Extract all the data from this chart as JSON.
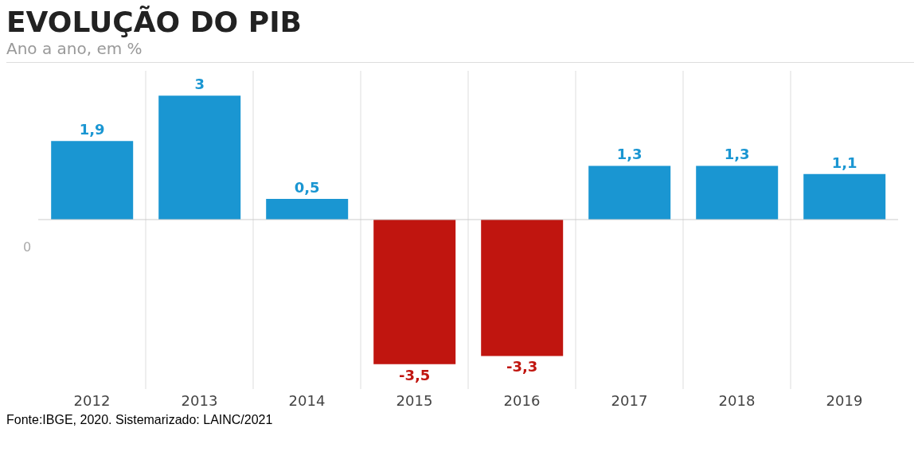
{
  "chart_data": {
    "type": "bar",
    "title": "EVOLUÇÃO DO PIB",
    "subtitle": "Ano a ano, em %",
    "categories": [
      "2012",
      "2013",
      "2014",
      "2015",
      "2016",
      "2017",
      "2018",
      "2019"
    ],
    "values": [
      1.9,
      3,
      0.5,
      -3.5,
      -3.3,
      1.3,
      1.3,
      1.1
    ],
    "value_labels": [
      "1,9",
      "3",
      "0,5",
      "-3,5",
      "-3,3",
      "1,3",
      "1,3",
      "1,1"
    ],
    "colors": [
      "#1a96d2",
      "#1a96d2",
      "#1a96d2",
      "#c0150f",
      "#c0150f",
      "#1a96d2",
      "#1a96d2",
      "#1a96d2"
    ],
    "ylim": [
      -4.1,
      3.6
    ],
    "grid": "x",
    "annotations": [
      "0",
      "Fonte:IBGE, 2020. Sistemarizado: LAINC/2021"
    ]
  }
}
